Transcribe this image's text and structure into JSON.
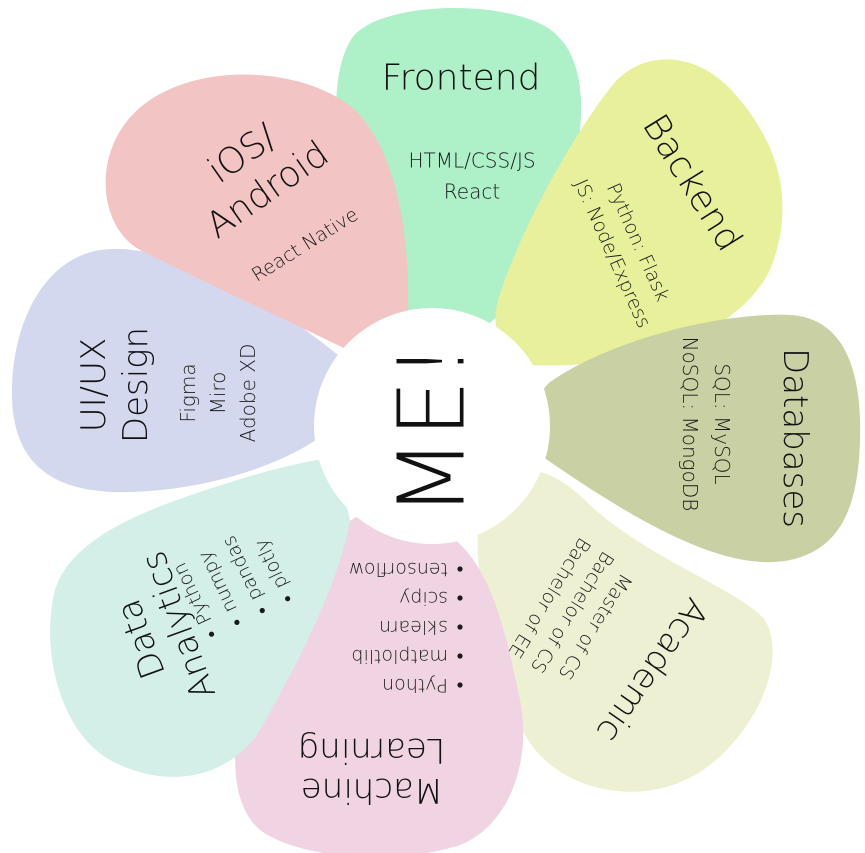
{
  "center": {
    "label": "ME!",
    "color": "#ffffff"
  },
  "petals": [
    {
      "id": "frontend",
      "color": "#aef0c8",
      "title": [
        "Frontend"
      ],
      "items": [
        "HTML/CSS/JS",
        "React"
      ],
      "bullets": false
    },
    {
      "id": "backend",
      "color": "#e8f09c",
      "title": [
        "Backend"
      ],
      "items": [
        "Python: Flask",
        "JS: Node/Express"
      ],
      "bullets": false
    },
    {
      "id": "databases",
      "color": "#c8d0a4",
      "title": [
        "Databases"
      ],
      "items": [
        "SQL: MySQL",
        "NoSQL: MongoDB"
      ],
      "bullets": false
    },
    {
      "id": "academic",
      "color": "#eef0d4",
      "title": [
        "Academic"
      ],
      "items": [
        "Master of CS",
        "Bachelor of CS",
        "Bachelor of EE"
      ],
      "bullets": false
    },
    {
      "id": "machine-learning",
      "color": "#f0d4e4",
      "title": [
        "Machine",
        "Learning"
      ],
      "items": [
        "Python",
        "matplotlib",
        "sklearn",
        "scipy",
        "tensorflow"
      ],
      "bullets": true
    },
    {
      "id": "data-analytics",
      "color": "#d4eee8",
      "title": [
        "Data",
        "Analytics"
      ],
      "items": [
        "Python",
        "numpy",
        "pandas",
        "plotly"
      ],
      "bullets": true
    },
    {
      "id": "ui-ux-design",
      "color": "#d4d8ee",
      "title": [
        "UI/UX",
        "Design"
      ],
      "items": [
        "Figma",
        "Miro",
        "Adobe XD"
      ],
      "bullets": false
    },
    {
      "id": "ios-android",
      "color": "#f2c4c4",
      "title": [
        "iOS/",
        "Android"
      ],
      "items": [
        "React Native"
      ],
      "bullets": false
    }
  ]
}
